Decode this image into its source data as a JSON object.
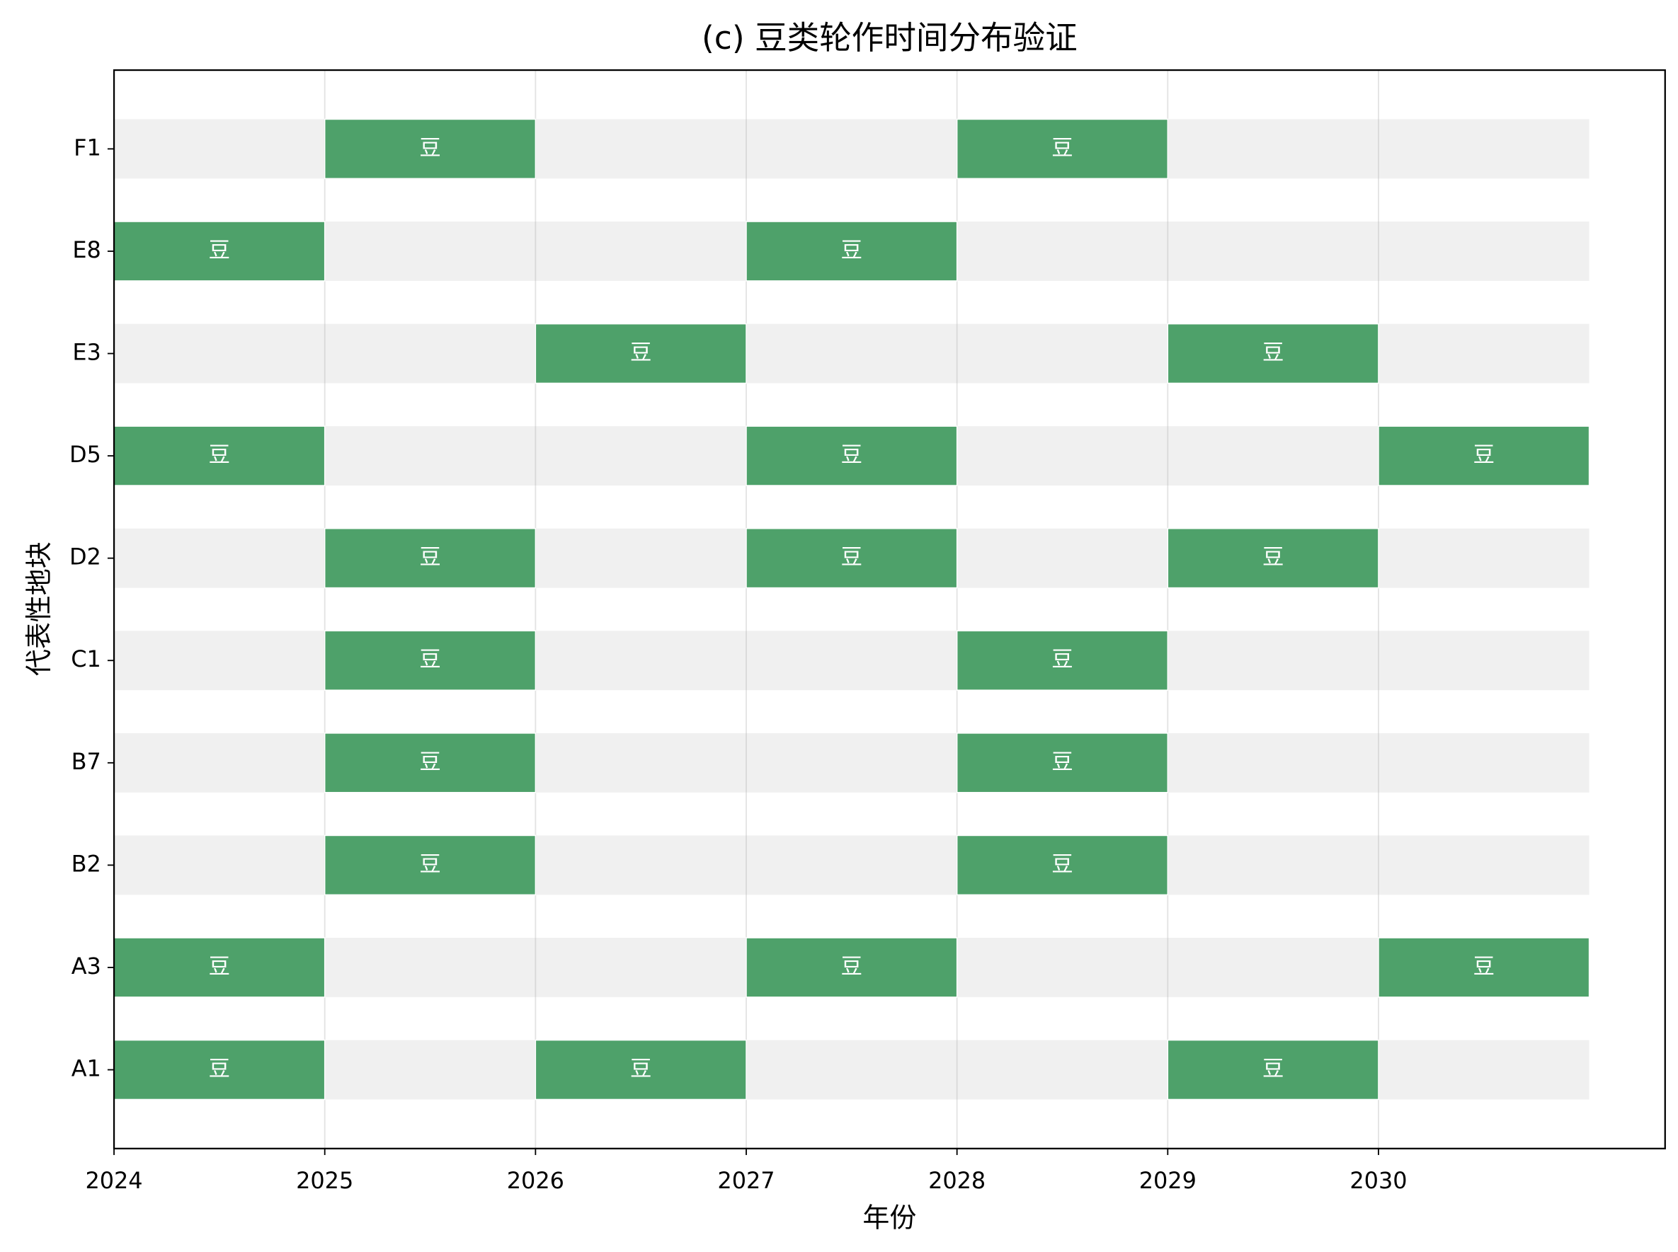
{
  "chart_data": {
    "type": "timeline",
    "title": "(c) 豆类轮作时间分布验证",
    "xlabel": "年份",
    "ylabel": "代表性地块",
    "categories": [
      "A1",
      "A3",
      "B2",
      "B7",
      "C1",
      "D2",
      "D5",
      "E3",
      "E8",
      "F1"
    ],
    "bars": [
      [
        {
          "start": 2024,
          "end": 2025,
          "label": "豆"
        },
        {
          "start": 2026,
          "end": 2027,
          "label": "豆"
        },
        {
          "start": 2029,
          "end": 2030,
          "label": "豆"
        }
      ],
      [
        {
          "start": 2024,
          "end": 2025,
          "label": "豆"
        },
        {
          "start": 2027,
          "end": 2028,
          "label": "豆"
        },
        {
          "start": 2030,
          "end": 2031,
          "label": "豆"
        }
      ],
      [
        {
          "start": 2025,
          "end": 2026,
          "label": "豆"
        },
        {
          "start": 2028,
          "end": 2029,
          "label": "豆"
        }
      ],
      [
        {
          "start": 2025,
          "end": 2026,
          "label": "豆"
        },
        {
          "start": 2028,
          "end": 2029,
          "label": "豆"
        }
      ],
      [
        {
          "start": 2025,
          "end": 2026,
          "label": "豆"
        },
        {
          "start": 2028,
          "end": 2029,
          "label": "豆"
        }
      ],
      [
        {
          "start": 2025,
          "end": 2026,
          "label": "豆"
        },
        {
          "start": 2027,
          "end": 2028,
          "label": "豆"
        },
        {
          "start": 2029,
          "end": 2030,
          "label": "豆"
        }
      ],
      [
        {
          "start": 2024,
          "end": 2025,
          "label": "豆"
        },
        {
          "start": 2027,
          "end": 2028,
          "label": "豆"
        },
        {
          "start": 2030,
          "end": 2031,
          "label": "豆"
        }
      ],
      [
        {
          "start": 2026,
          "end": 2027,
          "label": "豆"
        },
        {
          "start": 2029,
          "end": 2030,
          "label": "豆"
        }
      ],
      [
        {
          "start": 2024,
          "end": 2025,
          "label": "豆"
        },
        {
          "start": 2027,
          "end": 2028,
          "label": "豆"
        }
      ],
      [
        {
          "start": 2025,
          "end": 2026,
          "label": "豆"
        },
        {
          "start": 2028,
          "end": 2029,
          "label": "豆"
        }
      ]
    ],
    "background": {
      "start": 2024,
      "end": 2031,
      "color": "#f0f0f0"
    },
    "color": "#4ea16a",
    "xlim": [
      2024,
      2031.36
    ],
    "xticks": [
      2024,
      2025,
      2026,
      2027,
      2028,
      2029,
      2030
    ],
    "ylim": [
      -0.77,
      9.77
    ],
    "grid": true
  }
}
